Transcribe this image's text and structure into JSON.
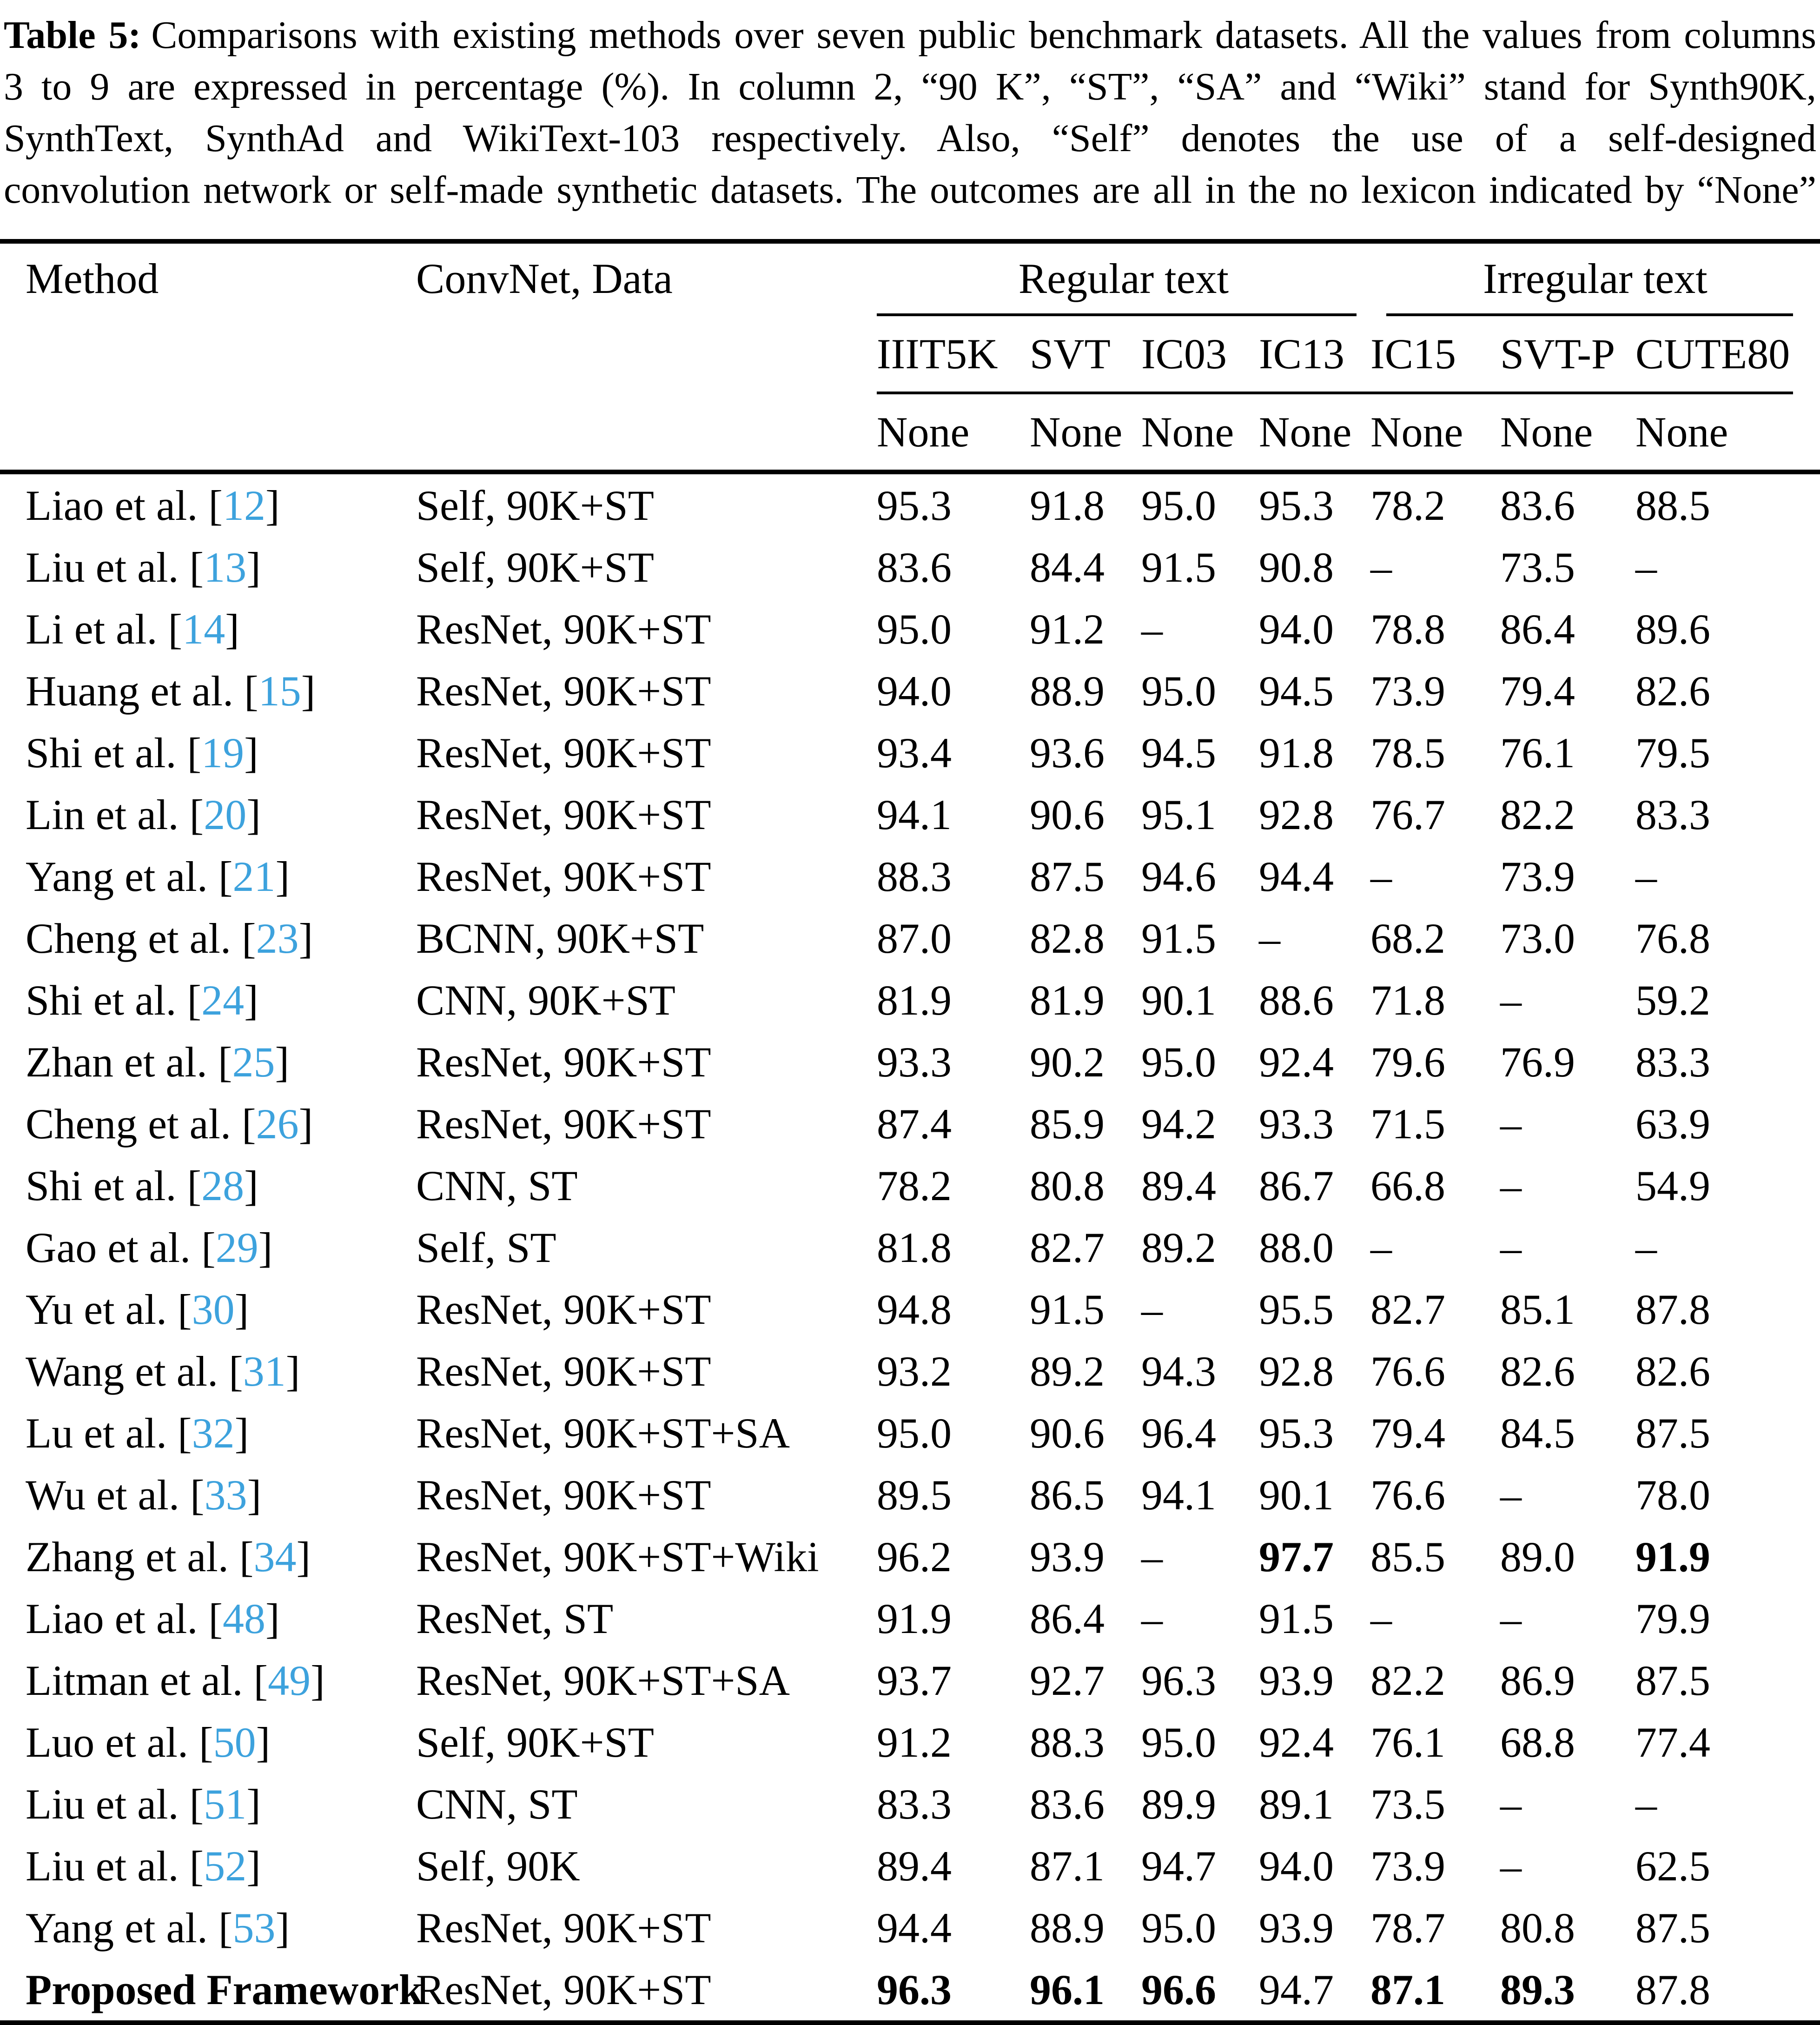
{
  "caption": {
    "label": "Table 5:",
    "line1_rest": "Comparisons with existing methods over seven public benchmark datasets. All the values from columns",
    "line2": "3 to 9 are expressed in percentage (%). In column 2, “90 K”, “ST”, “SA” and “Wiki” stand for Synth90K,",
    "line3": "SynthText, SynthAd and WikiText-103 respectively. Also, “Self” denotes the use of a self-designed",
    "line4": "convolution network or self-made synthetic datasets. The outcomes are all in the no lexicon indicated by “None”"
  },
  "colors": {
    "citation": "#3da2dd"
  },
  "table": {
    "header": {
      "method": "Method",
      "convnet": "ConvNet, Data",
      "regular_group": "Regular text",
      "irregular_group": "Irregular text",
      "datasets": [
        "IIIT5K",
        "SVT",
        "IC03",
        "IC13",
        "IC15",
        "SVT-P",
        "CUTE80"
      ],
      "lexicon": [
        "None",
        "None",
        "None",
        "None",
        "None",
        "None",
        "None"
      ]
    },
    "rows": [
      {
        "method": "Liao et al.",
        "ref": "12",
        "data": "Self, 90K+ST",
        "vals": [
          "95.3",
          "91.8",
          "95.0",
          "95.3",
          "78.2",
          "83.6",
          "88.5"
        ],
        "bold": []
      },
      {
        "method": "Liu et al.",
        "ref": "13",
        "data": "Self, 90K+ST",
        "vals": [
          "83.6",
          "84.4",
          "91.5",
          "90.8",
          "–",
          "73.5",
          "–"
        ],
        "bold": []
      },
      {
        "method": "Li et al.",
        "ref": "14",
        "data": "ResNet, 90K+ST",
        "vals": [
          "95.0",
          "91.2",
          "–",
          "94.0",
          "78.8",
          "86.4",
          "89.6"
        ],
        "bold": []
      },
      {
        "method": "Huang et al.",
        "ref": "15",
        "data": "ResNet, 90K+ST",
        "vals": [
          "94.0",
          "88.9",
          "95.0",
          "94.5",
          "73.9",
          "79.4",
          "82.6"
        ],
        "bold": []
      },
      {
        "method": "Shi et al.",
        "ref": "19",
        "data": "ResNet, 90K+ST",
        "vals": [
          "93.4",
          "93.6",
          "94.5",
          "91.8",
          "78.5",
          "76.1",
          "79.5"
        ],
        "bold": []
      },
      {
        "method": "Lin et al.",
        "ref": "20",
        "data": "ResNet, 90K+ST",
        "vals": [
          "94.1",
          "90.6",
          "95.1",
          "92.8",
          "76.7",
          "82.2",
          "83.3"
        ],
        "bold": []
      },
      {
        "method": "Yang et al.",
        "ref": "21",
        "data": "ResNet, 90K+ST",
        "vals": [
          "88.3",
          "87.5",
          "94.6",
          "94.4",
          "–",
          "73.9",
          "–"
        ],
        "bold": []
      },
      {
        "method": "Cheng et al.",
        "ref": "23",
        "data": "BCNN, 90K+ST",
        "vals": [
          "87.0",
          "82.8",
          "91.5",
          "–",
          "68.2",
          "73.0",
          "76.8"
        ],
        "bold": []
      },
      {
        "method": "Shi et al.",
        "ref": "24",
        "data": "CNN, 90K+ST",
        "vals": [
          "81.9",
          "81.9",
          "90.1",
          "88.6",
          "71.8",
          "–",
          "59.2"
        ],
        "bold": []
      },
      {
        "method": "Zhan et al.",
        "ref": "25",
        "data": "ResNet, 90K+ST",
        "vals": [
          "93.3",
          "90.2",
          "95.0",
          "92.4",
          "79.6",
          "76.9",
          "83.3"
        ],
        "bold": []
      },
      {
        "method": "Cheng et al.",
        "ref": "26",
        "data": "ResNet, 90K+ST",
        "vals": [
          "87.4",
          "85.9",
          "94.2",
          "93.3",
          "71.5",
          "–",
          "63.9"
        ],
        "bold": []
      },
      {
        "method": "Shi et al.",
        "ref": "28",
        "data": "CNN, ST",
        "vals": [
          "78.2",
          "80.8",
          "89.4",
          "86.7",
          "66.8",
          "–",
          "54.9"
        ],
        "bold": []
      },
      {
        "method": "Gao et al.",
        "ref": "29",
        "data": "Self, ST",
        "vals": [
          "81.8",
          "82.7",
          "89.2",
          "88.0",
          "–",
          "–",
          "–"
        ],
        "bold": []
      },
      {
        "method": "Yu et al.",
        "ref": "30",
        "data": "ResNet, 90K+ST",
        "vals": [
          "94.8",
          "91.5",
          "–",
          "95.5",
          "82.7",
          "85.1",
          "87.8"
        ],
        "bold": []
      },
      {
        "method": "Wang et al.",
        "ref": "31",
        "data": "ResNet, 90K+ST",
        "vals": [
          "93.2",
          "89.2",
          "94.3",
          "92.8",
          "76.6",
          "82.6",
          "82.6"
        ],
        "bold": []
      },
      {
        "method": "Lu et al.",
        "ref": "32",
        "data": "ResNet, 90K+ST+SA",
        "vals": [
          "95.0",
          "90.6",
          "96.4",
          "95.3",
          "79.4",
          "84.5",
          "87.5"
        ],
        "bold": []
      },
      {
        "method": "Wu et al.",
        "ref": "33",
        "data": "ResNet, 90K+ST",
        "vals": [
          "89.5",
          "86.5",
          "94.1",
          "90.1",
          "76.6",
          "–",
          "78.0"
        ],
        "bold": []
      },
      {
        "method": "Zhang et al.",
        "ref": "34",
        "data": "ResNet, 90K+ST+Wiki",
        "vals": [
          "96.2",
          "93.9",
          "–",
          "97.7",
          "85.5",
          "89.0",
          "91.9"
        ],
        "bold": [
          3,
          6
        ]
      },
      {
        "method": "Liao et al.",
        "ref": "48",
        "data": "ResNet, ST",
        "vals": [
          "91.9",
          "86.4",
          "–",
          "91.5",
          "–",
          "–",
          "79.9"
        ],
        "bold": []
      },
      {
        "method": "Litman et al.",
        "ref": "49",
        "data": "ResNet, 90K+ST+SA",
        "vals": [
          "93.7",
          "92.7",
          "96.3",
          "93.9",
          "82.2",
          "86.9",
          "87.5"
        ],
        "bold": []
      },
      {
        "method": "Luo et al.",
        "ref": "50",
        "data": "Self, 90K+ST",
        "vals": [
          "91.2",
          "88.3",
          "95.0",
          "92.4",
          "76.1",
          "68.8",
          "77.4"
        ],
        "bold": []
      },
      {
        "method": "Liu et al.",
        "ref": "51",
        "data": "CNN, ST",
        "vals": [
          "83.3",
          "83.6",
          "89.9",
          "89.1",
          "73.5",
          "–",
          "–"
        ],
        "bold": []
      },
      {
        "method": "Liu et al.",
        "ref": "52",
        "data": "Self, 90K",
        "vals": [
          "89.4",
          "87.1",
          "94.7",
          "94.0",
          "73.9",
          "–",
          "62.5"
        ],
        "bold": []
      },
      {
        "method": "Yang et al.",
        "ref": "53",
        "data": "ResNet, 90K+ST",
        "vals": [
          "94.4",
          "88.9",
          "95.0",
          "93.9",
          "78.7",
          "80.8",
          "87.5"
        ],
        "bold": []
      },
      {
        "method": "Proposed Framework",
        "ref": null,
        "data": "ResNet, 90K+ST",
        "vals": [
          "96.3",
          "96.1",
          "96.6",
          "94.7",
          "87.1",
          "89.3",
          "87.8"
        ],
        "bold": [
          0,
          1,
          2,
          4,
          5
        ],
        "method_bold": true
      }
    ]
  }
}
